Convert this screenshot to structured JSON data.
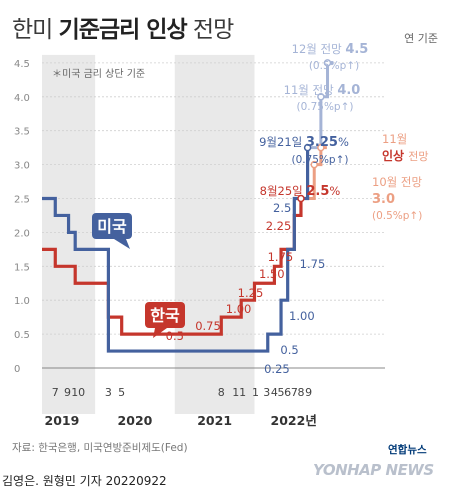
{
  "title": {
    "normal1": "한미",
    "bold": "기준금리 인상",
    "normal2": "전망"
  },
  "unit": "연 기준",
  "note": "＊미국 금리 상단 기준",
  "source": "자료: 한국은행, 미국연방준비제도(Fed)",
  "credit": "김영은. 원형민 기자 20220922",
  "logo_kr": "연합뉴스",
  "logo_en": "YONHAP NEWS",
  "colors": {
    "us": "#44619e",
    "korea": "#c5362c",
    "projection_us": "#a5b4d6",
    "projection_korea": "#ec9f83"
  },
  "chart_data": {
    "type": "line",
    "ylim": [
      0,
      4.5
    ],
    "y_ticks": [
      "0",
      "0.5",
      "1.0",
      "1.5",
      "2.0",
      "2.5",
      "3.0",
      "3.5",
      "4.0",
      "4.5"
    ],
    "x_month_labels": [
      "7",
      "9",
      "10",
      "3",
      "5",
      "8",
      "11",
      "1",
      "3",
      "4",
      "5",
      "6",
      "7",
      "8",
      "9"
    ],
    "year_labels": [
      "2019",
      "2020",
      "2021",
      "2022년"
    ],
    "series": [
      {
        "name": "미국",
        "points": [
          [
            "2019-05",
            2.5
          ],
          [
            "2019-07",
            2.25
          ],
          [
            "2019-09",
            2.0
          ],
          [
            "2019-10",
            1.75
          ],
          [
            "2020-03",
            0.25
          ],
          [
            "2022-03",
            0.5
          ],
          [
            "2022-05",
            1.0
          ],
          [
            "2022-06",
            1.75
          ],
          [
            "2022-07",
            2.5
          ],
          [
            "2022-09",
            3.25
          ]
        ],
        "projection": [
          [
            "2022-11",
            4.0
          ],
          [
            "2022-12",
            4.5
          ]
        ],
        "labels": [
          "0.25",
          "0.5",
          "1.00",
          "1.75",
          "2.5"
        ]
      },
      {
        "name": "한국",
        "points": [
          [
            "2019-05",
            1.75
          ],
          [
            "2019-07",
            1.5
          ],
          [
            "2019-10",
            1.25
          ],
          [
            "2020-03",
            0.75
          ],
          [
            "2020-05",
            0.5
          ],
          [
            "2021-08",
            0.75
          ],
          [
            "2021-11",
            1.0
          ],
          [
            "2022-01",
            1.25
          ],
          [
            "2022-04",
            1.5
          ],
          [
            "2022-05",
            1.75
          ],
          [
            "2022-07",
            2.25
          ],
          [
            "2022-08",
            2.5
          ]
        ],
        "projection": [
          [
            "2022-10",
            3.0
          ],
          [
            "2022-11",
            3.25
          ]
        ],
        "labels": [
          "0.5",
          "0.75",
          "1.00",
          "1.25",
          "1.50",
          "1.75",
          "2.25"
        ]
      }
    ],
    "annotations": {
      "us_sep": {
        "date": "9월21일",
        "value": "3.25",
        "suffix": "%",
        "note": "(0.75%p↑)"
      },
      "us_nov": {
        "date": "11월 전망",
        "value": "4.0",
        "note": "(0.75%p↑)"
      },
      "us_dec": {
        "date": "12월 전망",
        "value": "4.5",
        "note": "(0.5%p↑)"
      },
      "kr_aug": {
        "date": "8월25일",
        "value": "2.5",
        "suffix": "%"
      },
      "kr_oct": {
        "date": "10월 전망",
        "value": "3.0",
        "note": "(0.5%p↑)"
      },
      "kr_nov": {
        "line1": "11월",
        "bold": "인상",
        "line2": "전망"
      }
    }
  }
}
